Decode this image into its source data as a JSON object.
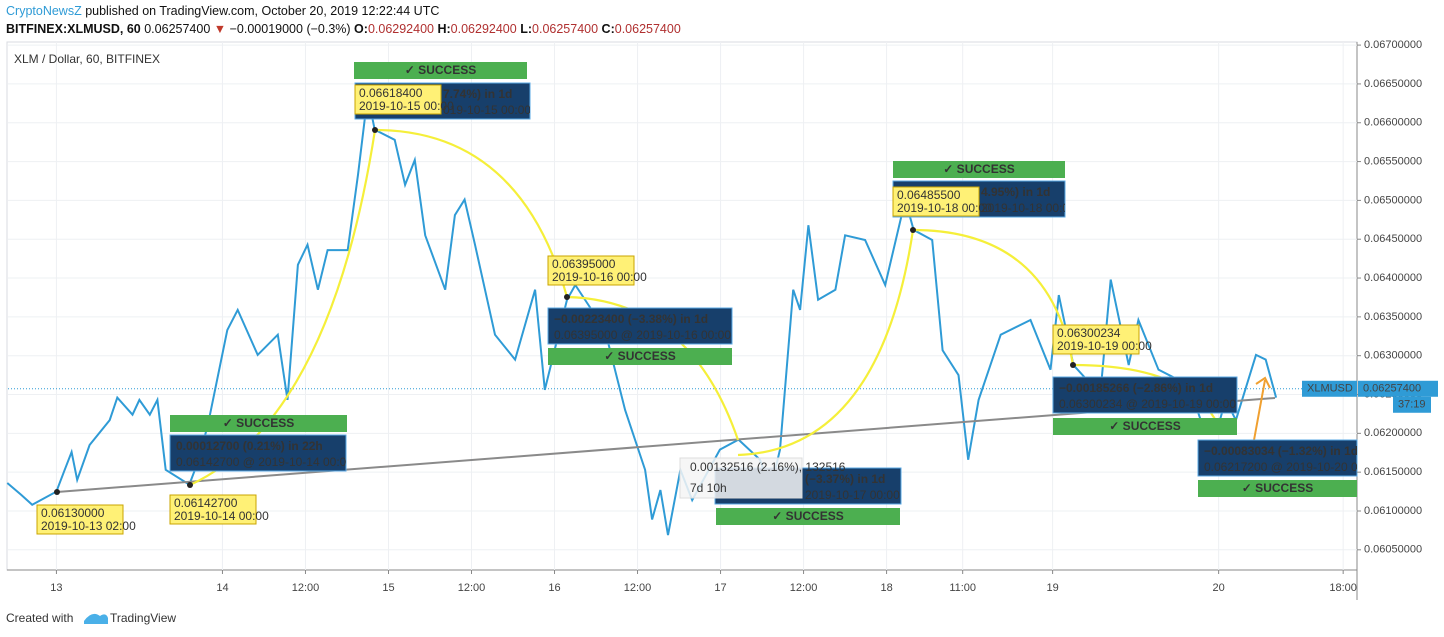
{
  "header": {
    "publisher": "CryptoNewsZ",
    "published": "published on TradingView.com, October 20, 2019 12:22:44 UTC",
    "symbol": "BITFINEX:XLMUSD, 60",
    "last": "0.06257400",
    "change": "−0.00019000 (−0.3%)",
    "o_label": "O:",
    "o": "0.06292400",
    "h_label": "H:",
    "h": "0.06292400",
    "l_label": "L:",
    "l": "0.06257400",
    "c_label": "C:",
    "c": "0.06257400"
  },
  "chart_data": {
    "type": "line",
    "title": "XLM / Dollar, 60, BITFINEX",
    "x": [
      -7.1,
      -5.1,
      -3.5,
      0,
      1.2,
      2.2,
      3.0,
      4.8,
      7.7,
      8.8,
      11,
      12,
      13.5,
      14.6,
      15.8,
      19.2,
      20.4,
      21.9,
      24.7,
      26.2,
      29.1,
      32,
      33.4,
      34.9,
      36.3,
      37.8,
      39.2,
      42.1,
      43.6,
      45,
      46,
      48.9,
      50.4,
      51.8,
      53.3,
      56.2,
      57.6,
      59,
      60.5,
      63.4,
      66.3,
      69.2,
      70.6,
      73.8,
      75,
      79.3,
      82.2,
      85.1,
      86.1,
      87.3,
      88.4,
      90.2,
      91.9,
      95.9,
      98.6,
      101.7,
      103.2,
      104.6,
      106.5,
      107.5,
      108.7,
      110.1,
      112.6,
      114,
      116.9,
      119.8,
      122.7,
      123.9,
      126.6,
      128.1,
      130.4,
      131.8,
      133.3,
      136.5,
      140.8,
      143.7,
      144.9,
      147,
      150.9,
      152.4,
      155,
      156.4,
      159.3,
      163.7,
      165.4,
      168,
      169,
      170.5,
      173.4,
      174.8,
      176.3
    ],
    "series": [
      {
        "name": "XLMUSD",
        "color": "#2f9bd6",
        "values": [
          0.06136,
          0.06121,
          0.06108,
          0.06125,
          0.06153,
          0.06176,
          0.0614,
          0.06185,
          0.06217,
          0.06246,
          0.06224,
          0.06243,
          0.06224,
          0.06243,
          0.06153,
          0.06134,
          0.06162,
          0.06211,
          0.06333,
          0.06359,
          0.06301,
          0.06327,
          0.06243,
          0.06417,
          0.06443,
          0.06385,
          0.06436,
          0.06436,
          0.06533,
          0.06636,
          0.06591,
          0.06578,
          0.0652,
          0.06552,
          0.06455,
          0.06385,
          0.06481,
          0.06501,
          0.06443,
          0.06327,
          0.06295,
          0.06385,
          0.06256,
          0.06372,
          0.06391,
          0.06333,
          0.0623,
          0.06153,
          0.06089,
          0.06127,
          0.06069,
          0.06153,
          0.06114,
          0.06179,
          0.06192,
          0.06166,
          0.06127,
          0.06179,
          0.06385,
          0.06359,
          0.06468,
          0.06372,
          0.06385,
          0.06455,
          0.06449,
          0.06391,
          0.06501,
          0.06462,
          0.06449,
          0.06307,
          0.06275,
          0.06166,
          0.06243,
          0.06327,
          0.06346,
          0.06282,
          0.06378,
          0.06288,
          0.0625,
          0.06398,
          0.06288,
          0.06346,
          0.06282,
          0.06262,
          0.06217,
          0.06211,
          0.06243,
          0.06217,
          0.06301,
          0.06295,
          0.06246
        ]
      }
    ],
    "xlim": [
      -7,
      188
    ],
    "ylim": [
      0.06024,
      0.06713
    ],
    "xticks": [
      {
        "value": 0,
        "label": "13"
      },
      {
        "value": 24,
        "label": "14"
      },
      {
        "value": 36,
        "label": "12:00"
      },
      {
        "value": 48,
        "label": "15"
      },
      {
        "value": 60,
        "label": "12:00"
      },
      {
        "value": 72,
        "label": "16"
      },
      {
        "value": 84,
        "label": "12:00"
      },
      {
        "value": 96,
        "label": "17"
      },
      {
        "value": 108,
        "label": "12:00"
      },
      {
        "value": 120,
        "label": "18"
      },
      {
        "value": 131,
        "label": "11:00"
      },
      {
        "value": 144,
        "label": "19"
      },
      {
        "value": 168,
        "label": "20"
      },
      {
        "value": 186,
        "label": "18:00"
      }
    ],
    "yticks": [
      {
        "value": 0.0605,
        "label": "0.06050000"
      },
      {
        "value": 0.061,
        "label": "0.06100000"
      },
      {
        "value": 0.0615,
        "label": "0.06150000"
      },
      {
        "value": 0.062,
        "label": "0.06200000"
      },
      {
        "value": 0.0625,
        "label": "0.06250000"
      },
      {
        "value": 0.063,
        "label": "0.06300000"
      },
      {
        "value": 0.0635,
        "label": "0.06350000"
      },
      {
        "value": 0.064,
        "label": "0.06400000"
      },
      {
        "value": 0.0645,
        "label": "0.06450000"
      },
      {
        "value": 0.065,
        "label": "0.06500000"
      },
      {
        "value": 0.0655,
        "label": "0.06550000"
      },
      {
        "value": 0.066,
        "label": "0.06600000"
      },
      {
        "value": 0.0665,
        "label": "0.06650000"
      },
      {
        "value": 0.067,
        "label": "0.06700000"
      }
    ],
    "grid": true,
    "last_price": {
      "value": 0.062574,
      "label": "0.06257400",
      "countdown": "37:19"
    },
    "success": [
      "✓ SUCCESS",
      "✓ SUCCESS",
      "✓ SUCCESS",
      "✓ SUCCESS",
      "✓ SUCCESS",
      "✓ SUCCESS",
      "✓ SUCCESS"
    ],
    "measures": [
      {
        "change": "0.00012700 (0.21%) in 22h",
        "detail": "0.06142700 @ 2019-10-14  00:00"
      },
      {
        "change": "7.74%) in 1d",
        "detail": "019-10-15  00:00"
      },
      {
        "change": "−0.00223400 (−3.38%) in 1d",
        "detail": "0.06395000 @ 2019-10-16  00:00"
      },
      {
        "change": "(−3.37%) in 1d",
        "detail": "2019-10-17  00:00"
      },
      {
        "change": "4.95%) in 1d",
        "detail": "2019-10-18  00:00"
      },
      {
        "change": "−0.00185266 (−2.86%) in 1d",
        "detail": "0.06300234 @ 2019-10-19  00:00"
      },
      {
        "change": "−0.00083034 (−1.32%) in 1d",
        "detail": "0.06217200 @ 2019-10-20  00:0"
      }
    ],
    "price_labels": [
      {
        "price": "0.06130000",
        "date": "2019-10-13 02:00"
      },
      {
        "price": "0.06142700",
        "date": "2019-10-14 00:00"
      },
      {
        "price": "0.06618400",
        "date": "2019-10-15 00:00"
      },
      {
        "price": "0.06395000",
        "date": "2019-10-16 00:00"
      },
      {
        "price": "0.06485500",
        "date": "2019-10-18 00:00"
      },
      {
        "price": "0.06300234",
        "date": "2019-10-19 00:00"
      }
    ],
    "stats_box": {
      "line1": "0.00132516 (2.16%), 132516",
      "line2": "7d 10h"
    }
  },
  "footer": {
    "created": "Created with",
    "brand": "TradingView"
  }
}
